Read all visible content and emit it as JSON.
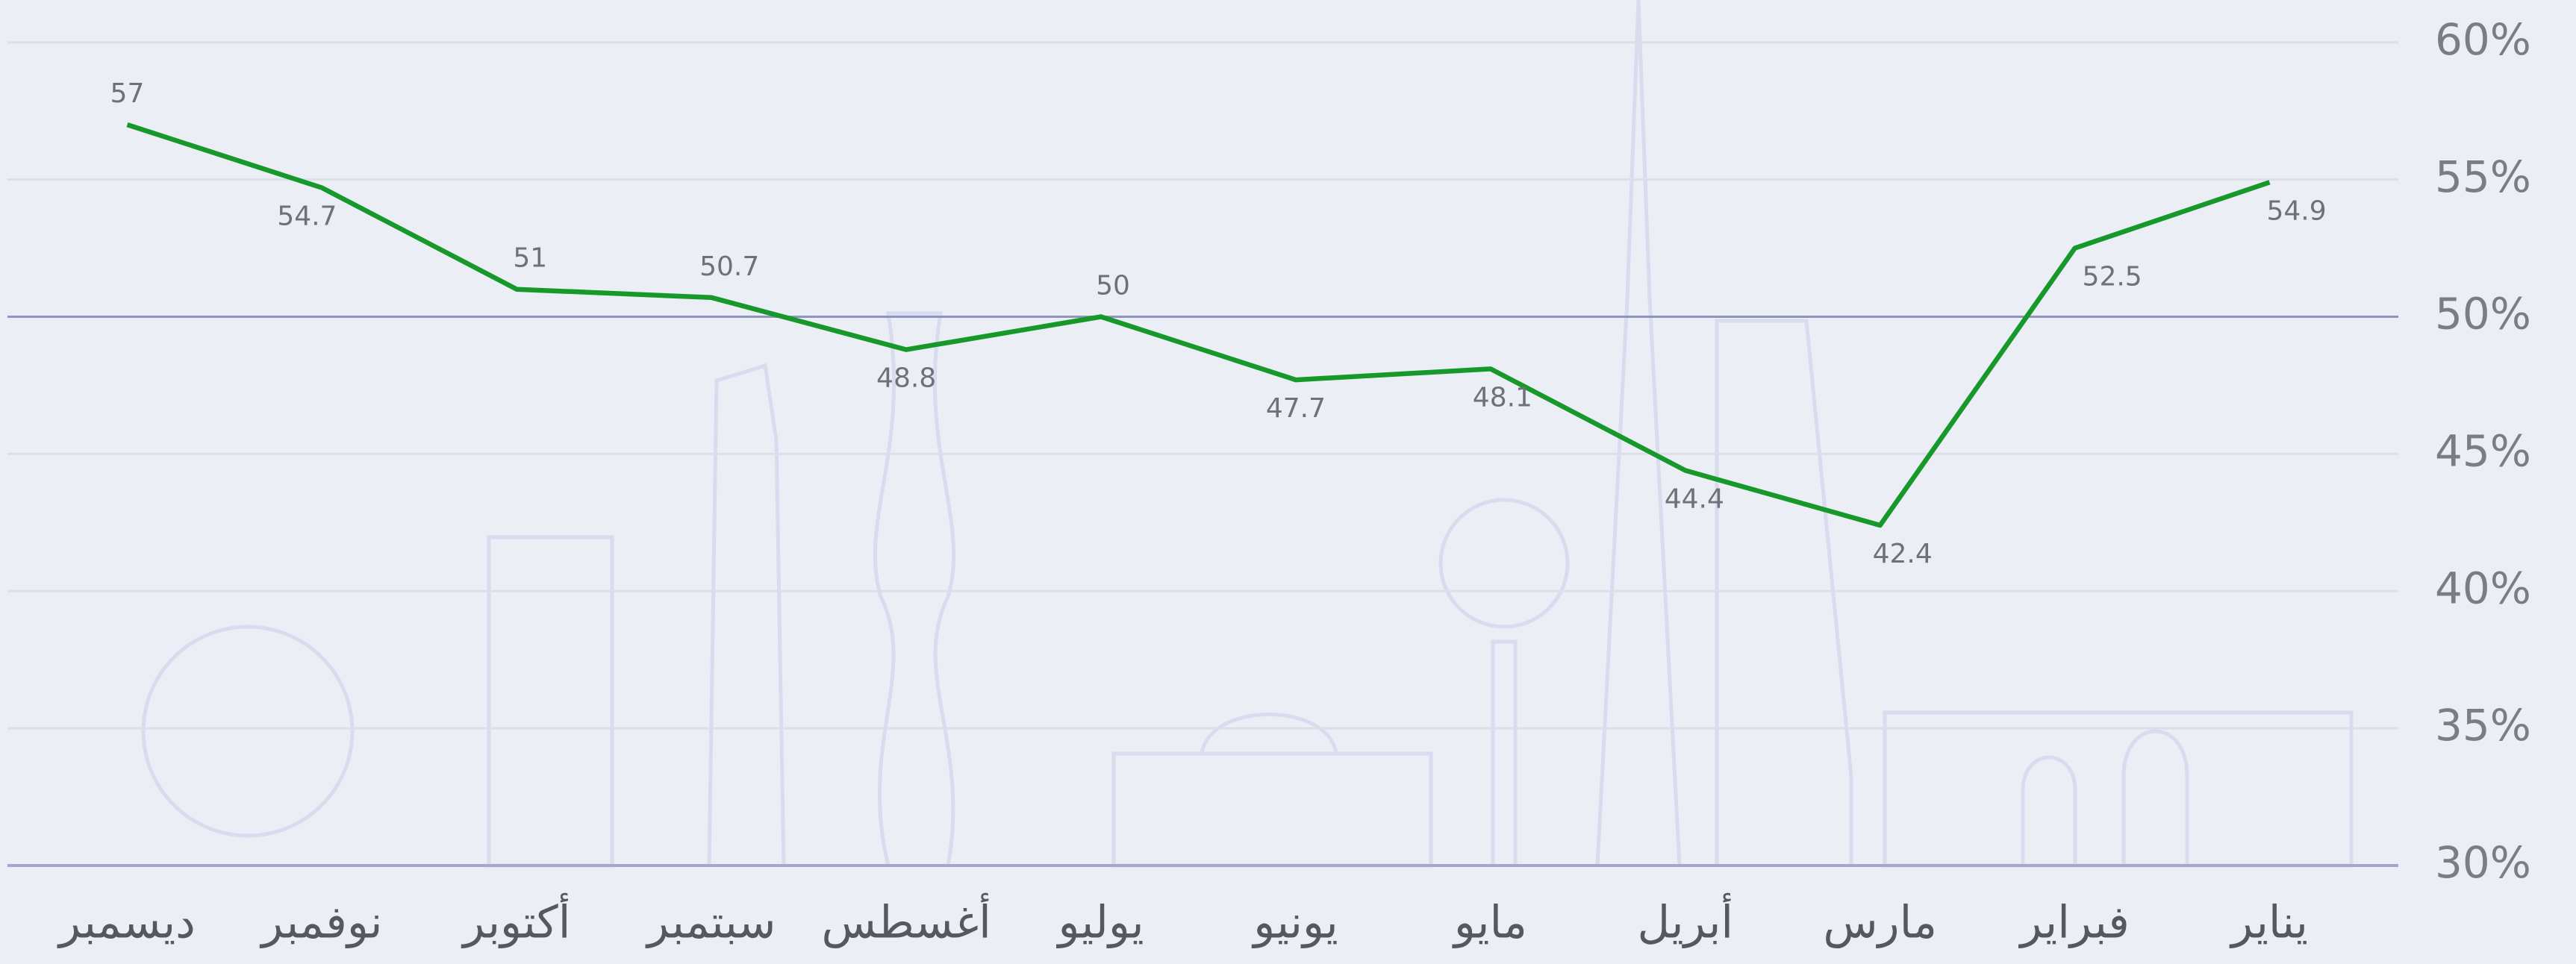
{
  "chart_data": {
    "type": "line",
    "categories": [
      "يناير",
      "فبراير",
      "مارس",
      "أبريل",
      "مايو",
      "يونيو",
      "يوليو",
      "أغسطس",
      "سبتمبر",
      "أكتوبر",
      "نوفمبر",
      "ديسمبر"
    ],
    "values": [
      54.9,
      52.5,
      42.4,
      44.4,
      48.1,
      47.7,
      50,
      48.8,
      50.7,
      51,
      54.7,
      57
    ],
    "color": "#17982a",
    "ylim": [
      30,
      61
    ],
    "yticks": [
      {
        "value": 30,
        "label": "30%"
      },
      {
        "value": 35,
        "label": "35%"
      },
      {
        "value": 40,
        "label": "40%"
      },
      {
        "value": 45,
        "label": "45%"
      },
      {
        "value": 50,
        "label": "50%"
      },
      {
        "value": 55,
        "label": "55%"
      },
      {
        "value": 60,
        "label": "60%"
      }
    ],
    "reference_line": 50,
    "grid": true,
    "x_direction": "right-to-left"
  }
}
